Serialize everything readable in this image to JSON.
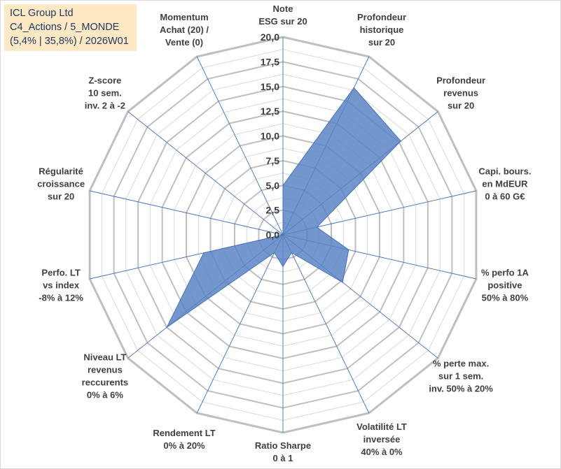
{
  "title_box": {
    "line1": "ICL Group Ltd",
    "line2": "C4_Actions / 5_MONDE",
    "line3": "(5,4% | 35,8%) / 2026W01"
  },
  "colors": {
    "fill": "#5b84c4",
    "stroke": "#4472c4",
    "grid": "#bfbfbf",
    "spoke": "#4472c4",
    "title_bg": "#fde9c4"
  },
  "chart_data": {
    "type": "radar",
    "rmin": 0,
    "rmax": 20,
    "ticks": [
      "0,0",
      "2,5",
      "5,0",
      "7,5",
      "10,0",
      "12,5",
      "15,0",
      "17,5",
      "20,0"
    ],
    "tick_values": [
      0,
      2.5,
      5,
      7.5,
      10,
      12.5,
      15,
      17.5,
      20
    ],
    "axes": [
      {
        "label": [
          "Note",
          "ESG sur 20"
        ],
        "value": 5.0
      },
      {
        "label": [
          "Profondeur",
          "historique",
          "sur 20"
        ],
        "value": 16.5
      },
      {
        "label": [
          "Profondeur",
          "revenus",
          "sur 20"
        ],
        "value": 15.2
      },
      {
        "label": [
          "Capi. bours.",
          "en MdEUR",
          "0 à 60 G€"
        ],
        "value": 3.5
      },
      {
        "label": [
          "% perfo 1A",
          "positive",
          "50% à 80%"
        ],
        "value": 6.8
      },
      {
        "label": [
          "% perte max.",
          "sur 1 sem.",
          "inv. 50% à 20%"
        ],
        "value": 7.7
      },
      {
        "label": [
          "Volatilité LT",
          "inversée",
          "40% à 0%"
        ],
        "value": 2.0
      },
      {
        "label": [
          "Ratio Sharpe",
          "0 à 1"
        ],
        "value": 3.2
      },
      {
        "label": [
          "Rendement LT",
          "0% à 20%"
        ],
        "value": 2.0
      },
      {
        "label": [
          "Niveau LT",
          "revenus",
          "reccurents",
          "0% à 6%"
        ],
        "value": 15.0
      },
      {
        "label": [
          "Perfo. LT",
          "vs index",
          "-8% à 12%"
        ],
        "value": 8.2
      },
      {
        "label": [
          "Régularité",
          "croissance",
          "sur 20"
        ],
        "value": 0.0
      },
      {
        "label": [
          "Z-score",
          "10 sem.",
          "inv. 2 à -2"
        ],
        "value": 0.0
      },
      {
        "label": [
          "Momentum",
          "Achat (20) /",
          "Vente (0)"
        ],
        "value": 0.0
      }
    ]
  }
}
